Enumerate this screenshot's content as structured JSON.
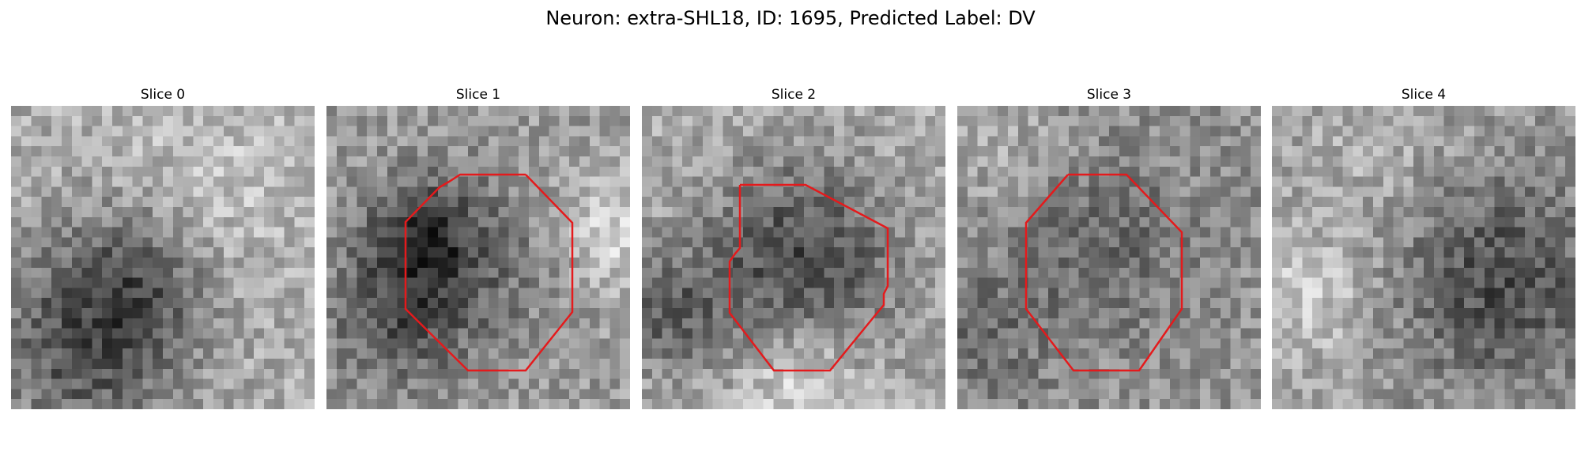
{
  "figure": {
    "title": "Neuron: extra-SHL18, ID: 1695, Predicted Label: DV"
  },
  "panels": [
    {
      "title": "Slice 0",
      "roi_contour": false
    },
    {
      "title": "Slice 1",
      "roi_contour": true
    },
    {
      "title": "Slice 2",
      "roi_contour": true
    },
    {
      "title": "Slice 3",
      "roi_contour": true
    },
    {
      "title": "Slice 4",
      "roi_contour": false
    }
  ],
  "colors": {
    "contour": "#e41a1c",
    "colormap": "grayscale"
  }
}
